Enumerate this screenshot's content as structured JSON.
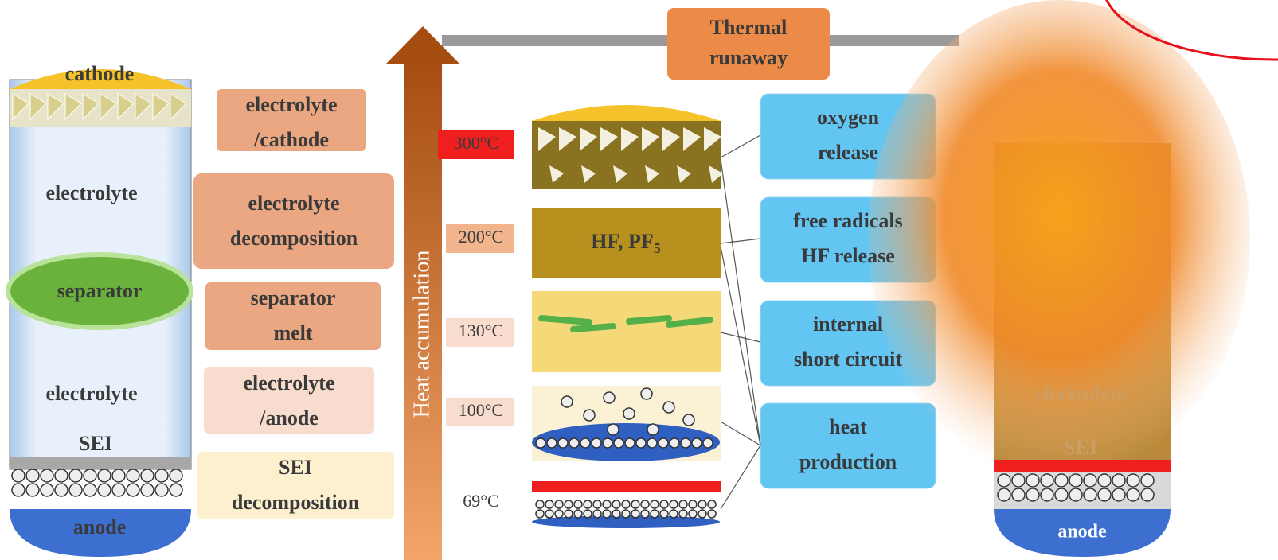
{
  "title": [
    "Thermal",
    "runaway"
  ],
  "left_cell": {
    "labels": [
      "cathode",
      "electrolyte",
      "separator",
      "electrolyte",
      "SEI",
      "anode"
    ]
  },
  "reactions": [
    [
      "electrolyte",
      "/cathode"
    ],
    [
      "electrolyte",
      "decomposition"
    ],
    [
      "separator",
      "melt"
    ],
    [
      "electrolyte",
      "/anode"
    ],
    [
      "SEI",
      "decomposition"
    ]
  ],
  "arrow_label": "Heat accumulation",
  "temperatures": [
    "300°C",
    "200°C",
    "130°C",
    "100°C",
    "69°C"
  ],
  "gas_layer": {
    "text": "HF, PF",
    "subscript": "5"
  },
  "outcomes": [
    [
      "oxygen",
      "release"
    ],
    [
      "free radicals",
      "HF release"
    ],
    [
      "internal",
      "short circuit"
    ],
    [
      "heat",
      "production"
    ]
  ],
  "burning_cell": {
    "labels": [
      "electrolyte",
      "SEI",
      "anode"
    ]
  }
}
